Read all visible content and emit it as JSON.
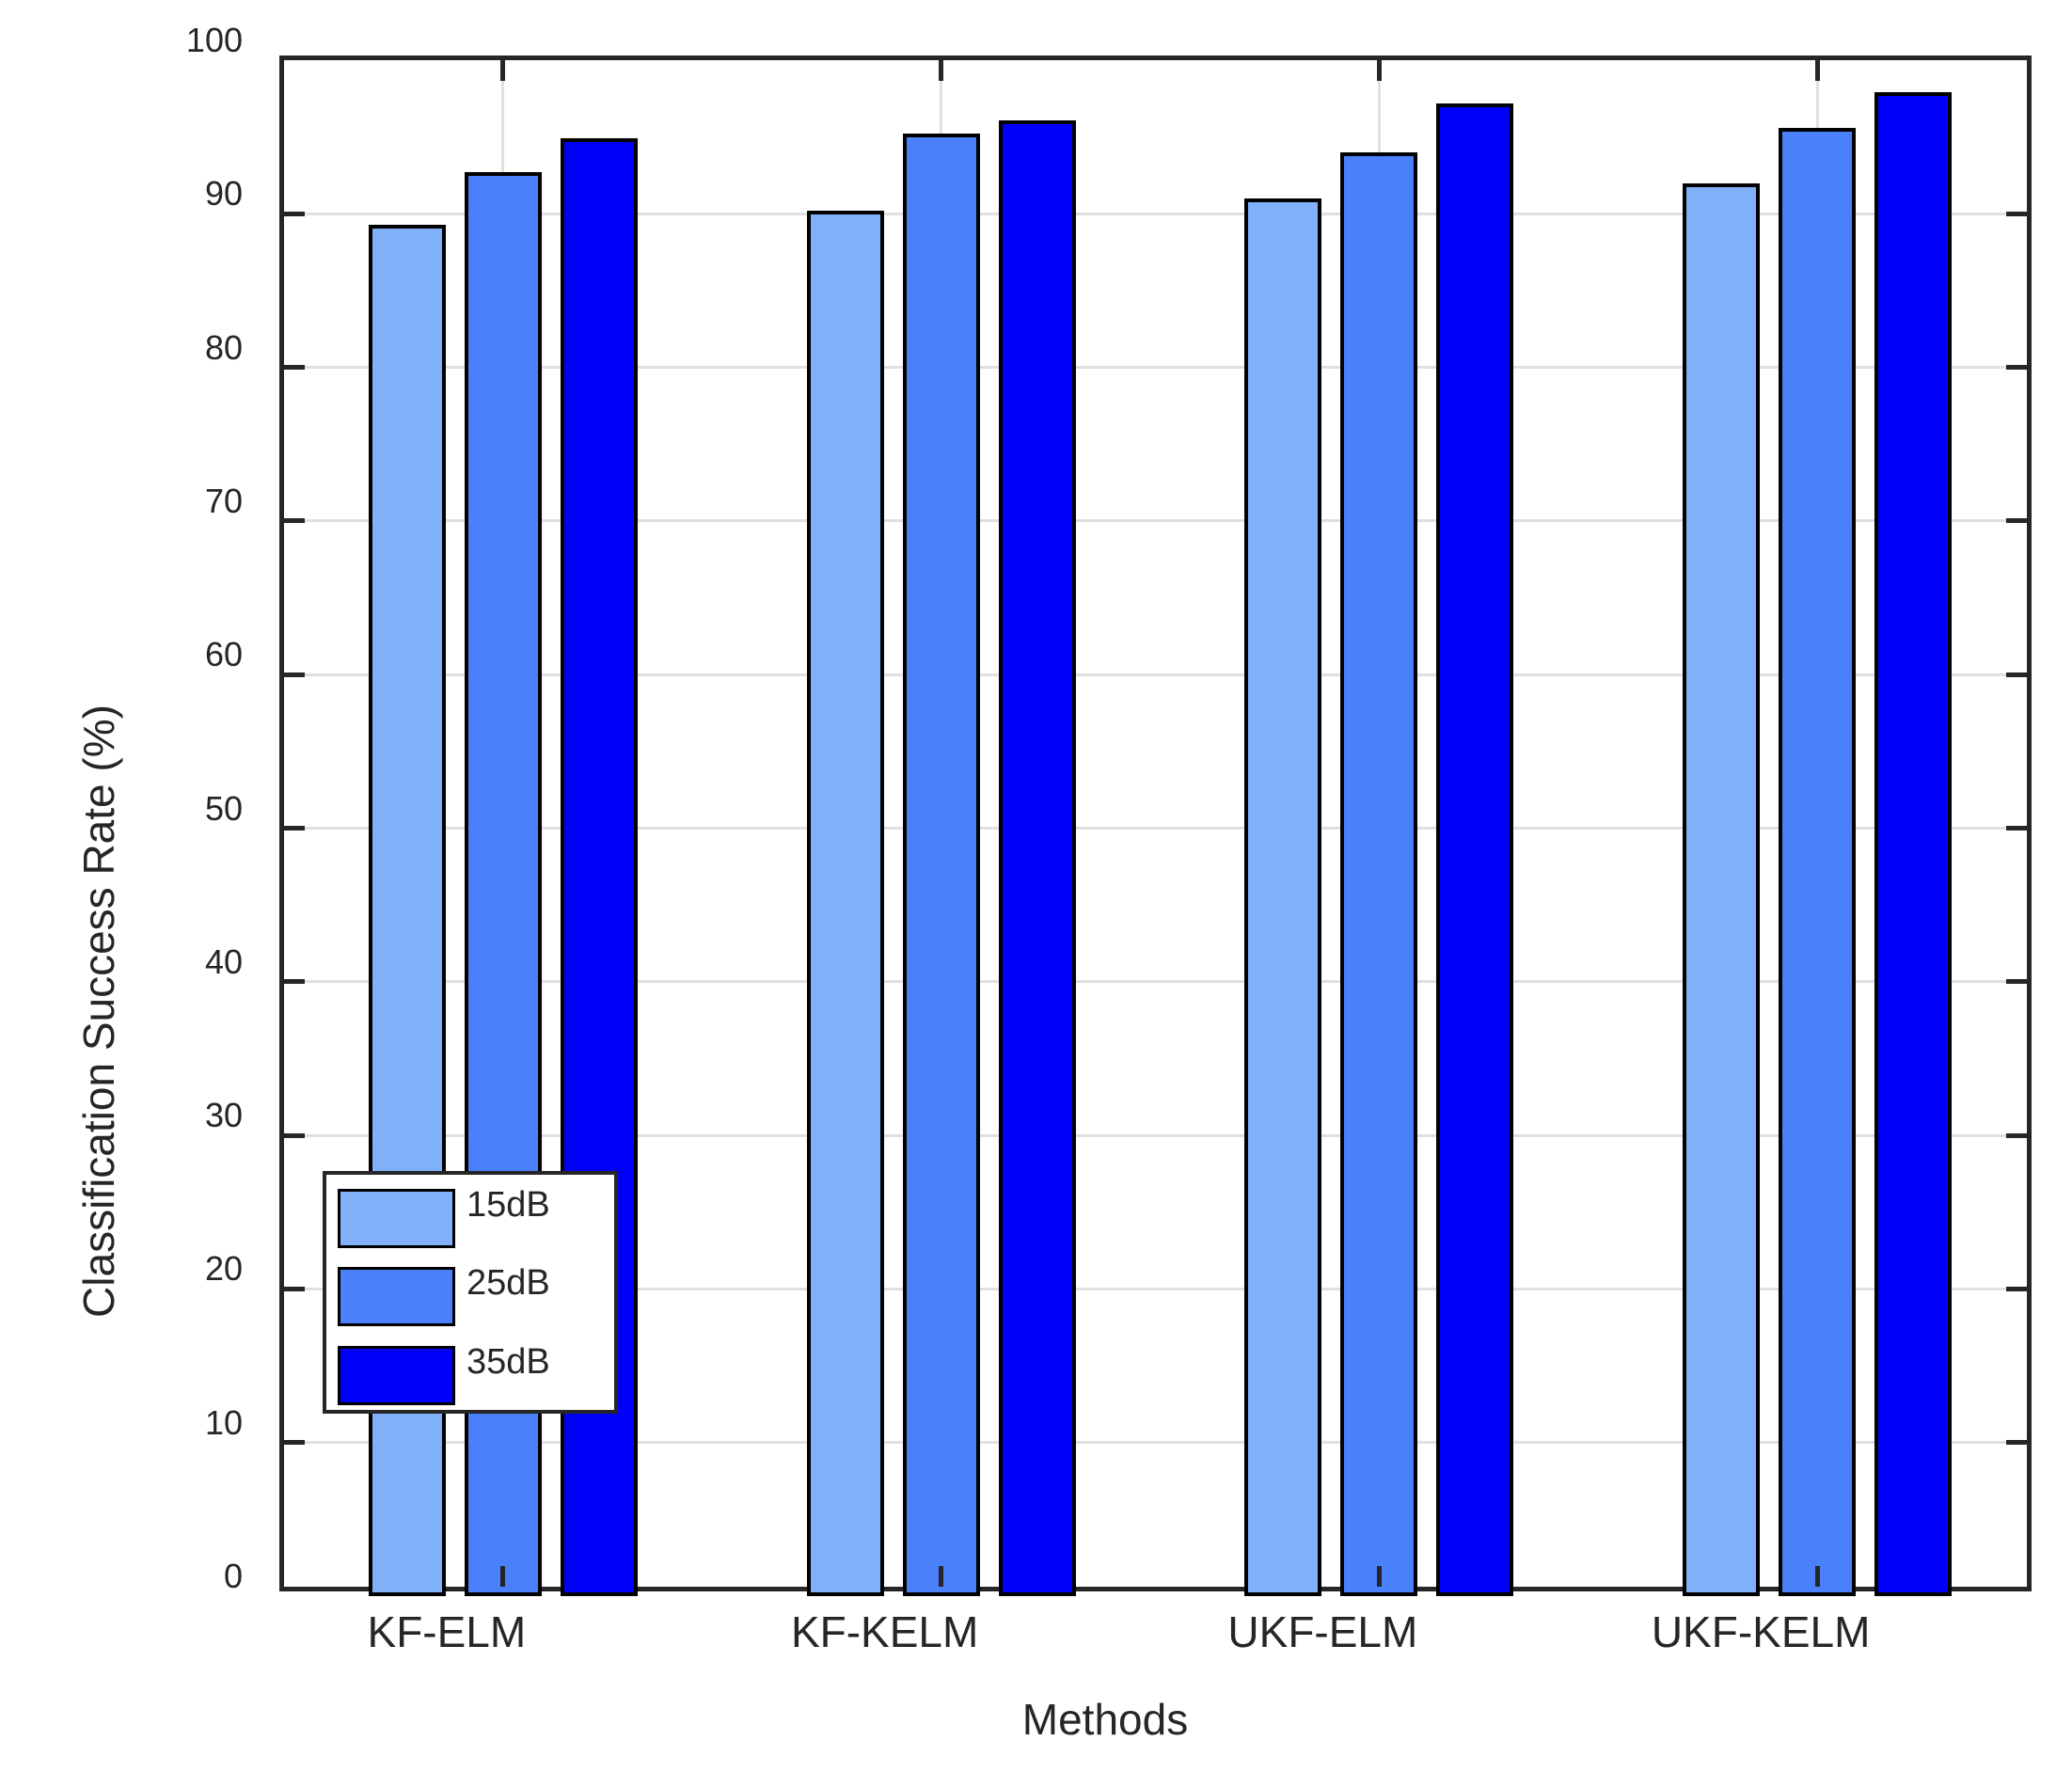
{
  "chart_data": {
    "type": "bar",
    "title": "",
    "xlabel": "Methods",
    "ylabel": "Classification Success Rate (%)",
    "categories": [
      "KF-ELM",
      "KF-KELM",
      "UKF-ELM",
      "UKF-KELM"
    ],
    "series": [
      {
        "name": "15dB",
        "color": "#80B0FA",
        "values": [
          89.3,
          90.2,
          91.0,
          92.0
        ]
      },
      {
        "name": "25dB",
        "color": "#4A80FA",
        "values": [
          92.7,
          95.2,
          94.0,
          95.6
        ]
      },
      {
        "name": "35dB",
        "color": "#0000FA",
        "values": [
          94.9,
          96.1,
          97.2,
          97.9
        ]
      }
    ],
    "ylim": [
      0,
      100
    ],
    "yticks": [
      0,
      10,
      20,
      30,
      40,
      50,
      60,
      70,
      80,
      90,
      100
    ],
    "grid": true,
    "legend_position": "lower-left",
    "colors": {
      "axis": "#262626",
      "grid": "#e0e0e0",
      "bar_edge": "#000000",
      "background": "#ffffff"
    }
  }
}
